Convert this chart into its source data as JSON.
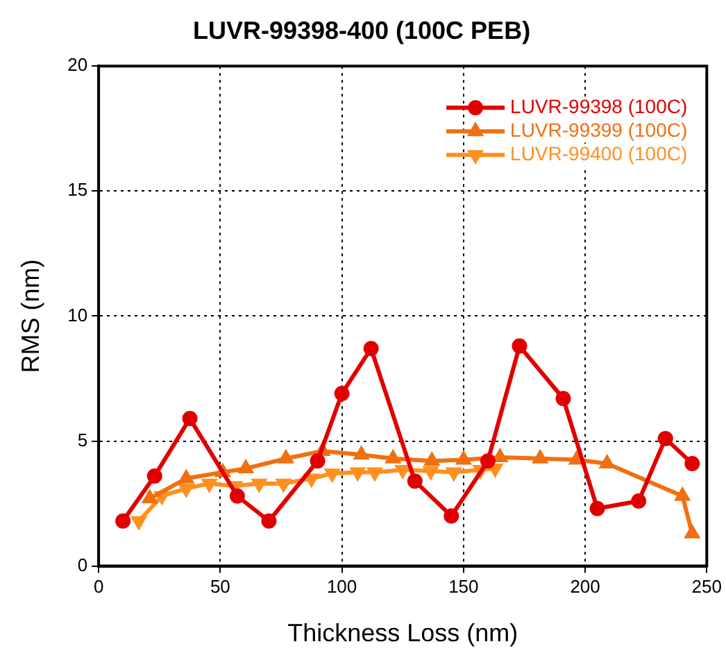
{
  "chart_data": {
    "type": "line",
    "title": "LUVR-99398-400 (100C PEB)",
    "xlabel": "Thickness Loss (nm)",
    "ylabel": "RMS (nm)",
    "xlim": [
      0,
      250
    ],
    "xticks": [
      0,
      50,
      100,
      150,
      200,
      250
    ],
    "ylim": [
      0,
      20
    ],
    "yticks": [
      0,
      5,
      10,
      15,
      20
    ],
    "grid": true,
    "legend": "top right",
    "line_style": "solid",
    "series": [
      {
        "name": "LUVR-99398 (100C)",
        "color": "#e00000",
        "marker": "circle",
        "x": [
          10,
          23,
          37.5,
          57,
          70,
          90,
          100,
          112,
          130,
          145,
          160,
          173,
          191,
          205,
          222,
          233,
          244
        ],
        "values": [
          1.8,
          3.6,
          5.9,
          2.8,
          1.8,
          4.2,
          6.9,
          8.7,
          3.4,
          2.0,
          4.2,
          8.8,
          6.7,
          2.3,
          2.6,
          5.1,
          4.1
        ]
      },
      {
        "name": "LUVR-99399 (100C)",
        "color": "#f07010",
        "marker": "triangle",
        "x": [
          21,
          36,
          51,
          60.5,
          77,
          92,
          108,
          121,
          137,
          150,
          165,
          181.5,
          196.5,
          209,
          240,
          244
        ],
        "values": [
          2.7,
          3.5,
          3.75,
          3.9,
          4.3,
          4.6,
          4.45,
          4.3,
          4.2,
          4.25,
          4.35,
          4.3,
          4.25,
          4.1,
          2.8,
          1.3
        ]
      },
      {
        "name": "LUVR-99400 (100C)",
        "color": "#ff9020",
        "marker": "triangle-down",
        "x": [
          16.5,
          26,
          36,
          45.5,
          56,
          66,
          76,
          87.5,
          96,
          106.5,
          113.5,
          125,
          136.5,
          146,
          157,
          163
        ],
        "values": [
          1.8,
          2.8,
          3.1,
          3.3,
          3.2,
          3.3,
          3.3,
          3.5,
          3.7,
          3.75,
          3.75,
          3.85,
          3.8,
          3.75,
          3.85,
          3.9
        ]
      }
    ]
  }
}
